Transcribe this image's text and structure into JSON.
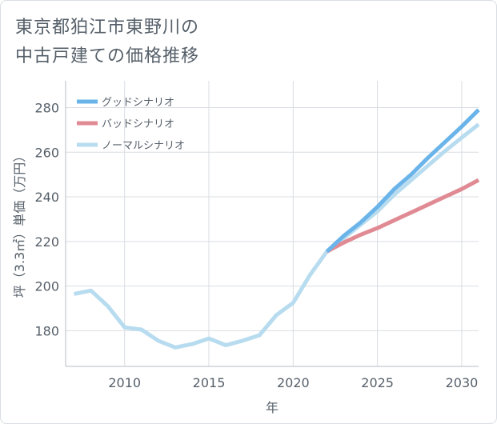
{
  "title_lines": [
    "東京都狛江市東野川の",
    "中古戸建ての価格推移"
  ],
  "chart_data": {
    "type": "line",
    "xlabel": "年",
    "ylabel": "坪（3.3㎡）単価（万円）",
    "xlim": [
      2006.5,
      2031
    ],
    "ylim": [
      164,
      292
    ],
    "xticks": [
      2010,
      2015,
      2020,
      2025,
      2030
    ],
    "yticks": [
      180,
      200,
      220,
      240,
      260,
      280
    ],
    "xtick_labels": [
      "2010",
      "2015",
      "2020",
      "2025",
      "2030"
    ],
    "ytick_labels": [
      "180",
      "200",
      "220",
      "240",
      "260",
      "280"
    ],
    "grid": true,
    "legend_position": "top-left",
    "series": [
      {
        "name": "グッドシナリオ",
        "color": "#6ab4ea",
        "x": [
          2022,
          2023,
          2024,
          2025,
          2026,
          2027,
          2028,
          2029,
          2030,
          2031
        ],
        "y": [
          215.5,
          222.5,
          228.5,
          235.5,
          243.5,
          250,
          257.5,
          264.5,
          271.5,
          279
        ]
      },
      {
        "name": "バッドシナリオ",
        "color": "#e08a93",
        "x": [
          2022,
          2023,
          2024,
          2025,
          2026,
          2027,
          2028,
          2029,
          2030,
          2031
        ],
        "y": [
          215.5,
          219.5,
          223,
          226,
          229.5,
          233,
          236.5,
          240,
          243.5,
          247.5
        ]
      },
      {
        "name": "ノーマルシナリオ",
        "color": "#b8dcef",
        "x": [
          2007,
          2008,
          2009,
          2010,
          2011,
          2012,
          2013,
          2014,
          2015,
          2016,
          2017,
          2018,
          2019,
          2020,
          2021,
          2022,
          2023,
          2024,
          2025,
          2026,
          2027,
          2028,
          2029,
          2030,
          2031
        ],
        "y": [
          196.5,
          198,
          191,
          181.5,
          180.5,
          175.5,
          172.5,
          174,
          176.5,
          173.5,
          175.5,
          178,
          187,
          192.5,
          205,
          215.5,
          221.5,
          227.5,
          233.5,
          241,
          247.5,
          254,
          260.5,
          266.5,
          272.5
        ]
      }
    ]
  }
}
